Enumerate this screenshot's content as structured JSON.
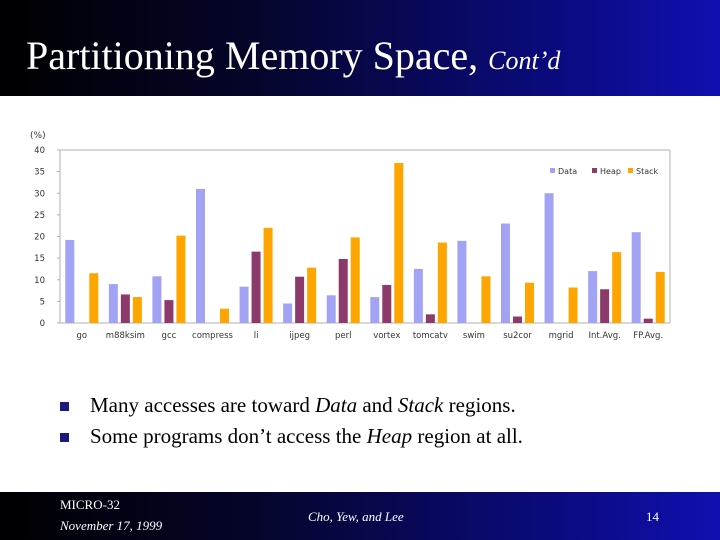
{
  "slide": {
    "title": "Partitioning Memory Space,",
    "title_suffix": "Cont’d",
    "bullets": [
      [
        "Many accesses are toward ",
        {
          "i": "Data"
        },
        " and ",
        {
          "i": "Stack"
        },
        " regions."
      ],
      [
        "Some programs don’t access the ",
        {
          "i": "Heap"
        },
        " region at all."
      ]
    ],
    "footer": {
      "venue": "MICRO-32",
      "date": "November 17, 1999",
      "authors": "Cho, Yew, and Lee",
      "page": "14"
    }
  },
  "colors": {
    "data": "#a3a3f5",
    "heap": "#8b3a6b",
    "stack": "#ffa500"
  },
  "chart_data": {
    "type": "bar",
    "unit_label": "(%)",
    "categories": [
      "go",
      "m88ksim",
      "gcc",
      "compress",
      "li",
      "ijpeg",
      "perl",
      "vortex",
      "tomcatv",
      "swim",
      "su2cor",
      "mgrid",
      "Int.Avg.",
      "FP.Avg."
    ],
    "series": [
      {
        "name": "Data",
        "values": [
          19.2,
          9,
          10.8,
          31,
          8.4,
          4.5,
          6.4,
          6,
          12.5,
          19,
          23,
          30,
          12,
          21
        ]
      },
      {
        "name": "Heap",
        "values": [
          0,
          6.6,
          5.3,
          0,
          16.5,
          10.7,
          14.8,
          8.8,
          2,
          0,
          1.5,
          0,
          7.8,
          1
        ]
      },
      {
        "name": "Stack",
        "values": [
          11.5,
          6,
          20.2,
          3.3,
          22,
          12.8,
          19.8,
          37,
          18.6,
          10.8,
          9.3,
          8.2,
          16.4,
          11.8
        ]
      }
    ],
    "yticks": [
      0,
      5,
      10,
      15,
      20,
      25,
      30,
      35,
      40
    ],
    "ylim": [
      0,
      40
    ],
    "grid": false,
    "legend": "top-right"
  }
}
